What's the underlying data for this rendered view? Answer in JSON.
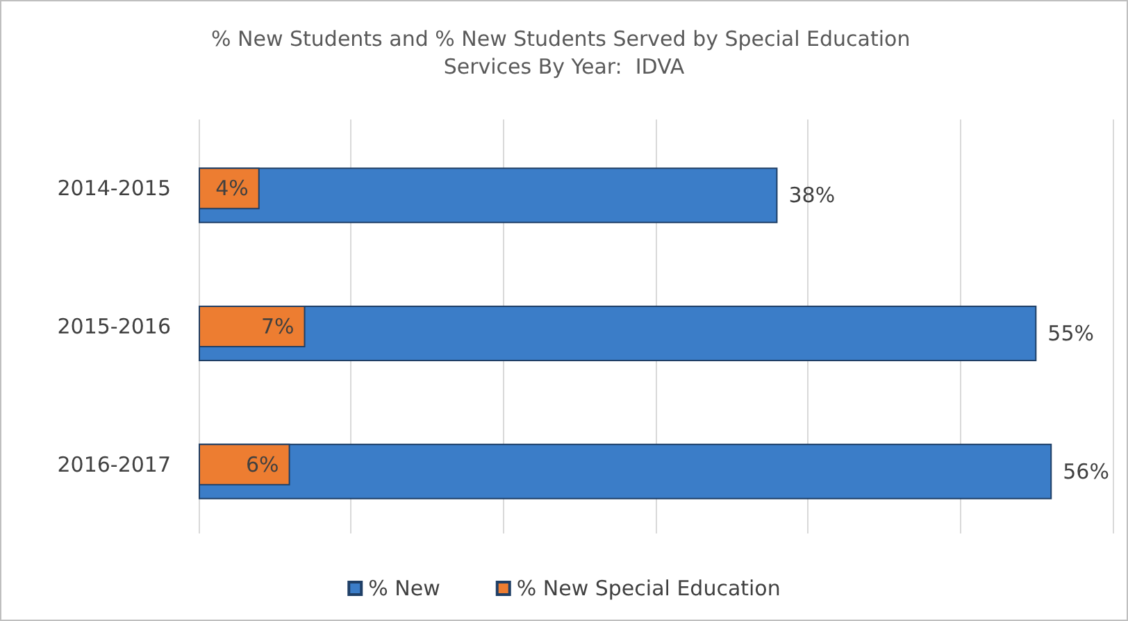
{
  "chart_data": {
    "type": "bar",
    "orientation": "horizontal",
    "title": "% New Students and % New Students Served by Special Education Services By Year:  IDVA",
    "categories": [
      "2014-2015",
      "2015-2016",
      "2016-2017"
    ],
    "series": [
      {
        "name": "% New",
        "color": "#3b7dc8",
        "values": [
          38,
          55,
          56
        ],
        "value_labels": [
          "38%",
          "55%",
          "56%"
        ]
      },
      {
        "name": "% New Special Education",
        "color": "#ed7d31",
        "values": [
          4,
          7,
          6
        ],
        "value_labels": [
          "4%",
          "7%",
          "6%"
        ]
      }
    ],
    "grid": "x",
    "tick_labels": "y",
    "legend": "bottom"
  }
}
